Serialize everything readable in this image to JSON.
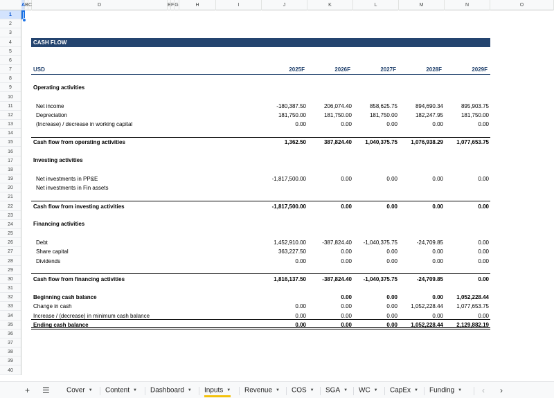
{
  "columns": [
    "A",
    "B",
    "C",
    "D",
    "E",
    "F",
    "G",
    "H",
    "I",
    "J",
    "K",
    "L",
    "M",
    "N",
    "O"
  ],
  "rows": [
    "1",
    "2",
    "3",
    "4",
    "5",
    "6",
    "7",
    "8",
    "9",
    "10",
    "11",
    "12",
    "13",
    "14",
    "15",
    "16",
    "17",
    "18",
    "19",
    "20",
    "21",
    "22",
    "23",
    "24",
    "25",
    "26",
    "27",
    "28",
    "29",
    "30",
    "31",
    "32",
    "33",
    "34",
    "35",
    "36",
    "37",
    "38",
    "39",
    "40"
  ],
  "selected_cell": "A1",
  "sheet": {
    "banner": "CASH FLOW",
    "unit_label": "USD",
    "years": [
      "2025F",
      "2026F",
      "2027F",
      "2028F",
      "2029F"
    ],
    "sections": {
      "operating": "Operating activities",
      "investing": "Investing activities",
      "financing": "Financing activities"
    },
    "lines": [
      {
        "row": 11,
        "label": "Net income",
        "indent": true,
        "bold": false,
        "values": [
          "-180,387.50",
          "206,074.40",
          "858,625.75",
          "894,690.34",
          "895,903.75"
        ]
      },
      {
        "row": 12,
        "label": "Depreciation",
        "indent": true,
        "bold": false,
        "values": [
          "181,750.00",
          "181,750.00",
          "181,750.00",
          "182,247.95",
          "181,750.00"
        ]
      },
      {
        "row": 13,
        "label": "(Increase) / decrease in working capital",
        "indent": true,
        "bold": false,
        "values": [
          "0.00",
          "0.00",
          "0.00",
          "0.00",
          "0.00"
        ]
      },
      {
        "row": 15,
        "label": "Cash flow from operating activities",
        "indent": false,
        "bold": true,
        "values": [
          "1,362.50",
          "387,824.40",
          "1,040,375.75",
          "1,076,938.29",
          "1,077,653.75"
        ]
      },
      {
        "row": 19,
        "label": "Net investments in PP&E",
        "indent": true,
        "bold": false,
        "values": [
          "-1,817,500.00",
          "0.00",
          "0.00",
          "0.00",
          "0.00"
        ]
      },
      {
        "row": 20,
        "label": "Net investments in Fin assets",
        "indent": true,
        "bold": false,
        "values": [
          "",
          "",
          "",
          "",
          ""
        ]
      },
      {
        "row": 22,
        "label": "Cash flow from investing activities",
        "indent": false,
        "bold": true,
        "values": [
          "-1,817,500.00",
          "0.00",
          "0.00",
          "0.00",
          "0.00"
        ]
      },
      {
        "row": 26,
        "label": "Debt",
        "indent": true,
        "bold": false,
        "values": [
          "1,452,910.00",
          "-387,824.40",
          "-1,040,375.75",
          "-24,709.85",
          "0.00"
        ]
      },
      {
        "row": 27,
        "label": "Share capital",
        "indent": true,
        "bold": false,
        "values": [
          "363,227.50",
          "0.00",
          "0.00",
          "0.00",
          "0.00"
        ]
      },
      {
        "row": 28,
        "label": "Dividends",
        "indent": true,
        "bold": false,
        "values": [
          "0.00",
          "0.00",
          "0.00",
          "0.00",
          "0.00"
        ]
      },
      {
        "row": 30,
        "label": "Cash flow from financing activities",
        "indent": false,
        "bold": true,
        "values": [
          "1,816,137.50",
          "-387,824.40",
          "-1,040,375.75",
          "-24,709.85",
          "0.00"
        ]
      },
      {
        "row": 32,
        "label": "Beginning cash balance",
        "indent": false,
        "bold": true,
        "values": [
          "",
          "0.00",
          "0.00",
          "0.00",
          "1,052,228.44"
        ]
      },
      {
        "row": 33,
        "label": "Change in cash",
        "indent": false,
        "bold": false,
        "values": [
          "0.00",
          "0.00",
          "0.00",
          "1,052,228.44",
          "1,077,653.75"
        ]
      },
      {
        "row": 34,
        "label": "Increase / (decrease) in minimum cash balance",
        "indent": false,
        "bold": false,
        "values": [
          "0.00",
          "0.00",
          "0.00",
          "0.00",
          "0.00"
        ]
      },
      {
        "row": 35,
        "label": "Ending cash balance",
        "indent": false,
        "bold": true,
        "values": [
          "0.00",
          "0.00",
          "0.00",
          "1,052,228.44",
          "2,129,882.19"
        ]
      }
    ]
  },
  "tabbar": {
    "add_icon": "plus-icon",
    "menu_icon": "hamburger-icon",
    "tabs": [
      "Cover",
      "Content",
      "Dashboard",
      "Inputs",
      "Revenue",
      "COS",
      "SGA",
      "WC",
      "CapEx",
      "Funding"
    ],
    "active_tab": "Inputs",
    "accent": "#f4c20d"
  },
  "colors": {
    "banner": "#24446f",
    "selection": "#1a73e8"
  }
}
